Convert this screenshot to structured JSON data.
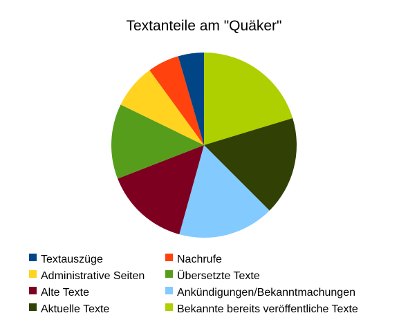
{
  "chart_data": {
    "type": "pie",
    "title": "Textanteile am \"Quäker\"",
    "legend_placement": "bottom",
    "start_angle_deg": 0,
    "direction": "clockwise",
    "series": [
      {
        "name": "Textauszüge",
        "value": 4.5,
        "color": "#004586"
      },
      {
        "name": "Nachrufe",
        "value": 5.5,
        "color": "#ff420e"
      },
      {
        "name": "Administrative Seiten",
        "value": 7.8,
        "color": "#ffd320"
      },
      {
        "name": "Übersetzte Texte",
        "value": 13.1,
        "color": "#579d1c"
      },
      {
        "name": "Alte Texte",
        "value": 14.8,
        "color": "#7e0021"
      },
      {
        "name": "Ankündigungen/Bekanntmachungen",
        "value": 16.8,
        "color": "#83caff"
      },
      {
        "name": "Aktuelle Texte",
        "value": 17.2,
        "color": "#314004"
      },
      {
        "name": "Bekannte bereits veröffentliche Texte",
        "value": 20.3,
        "color": "#aecf00"
      }
    ]
  }
}
